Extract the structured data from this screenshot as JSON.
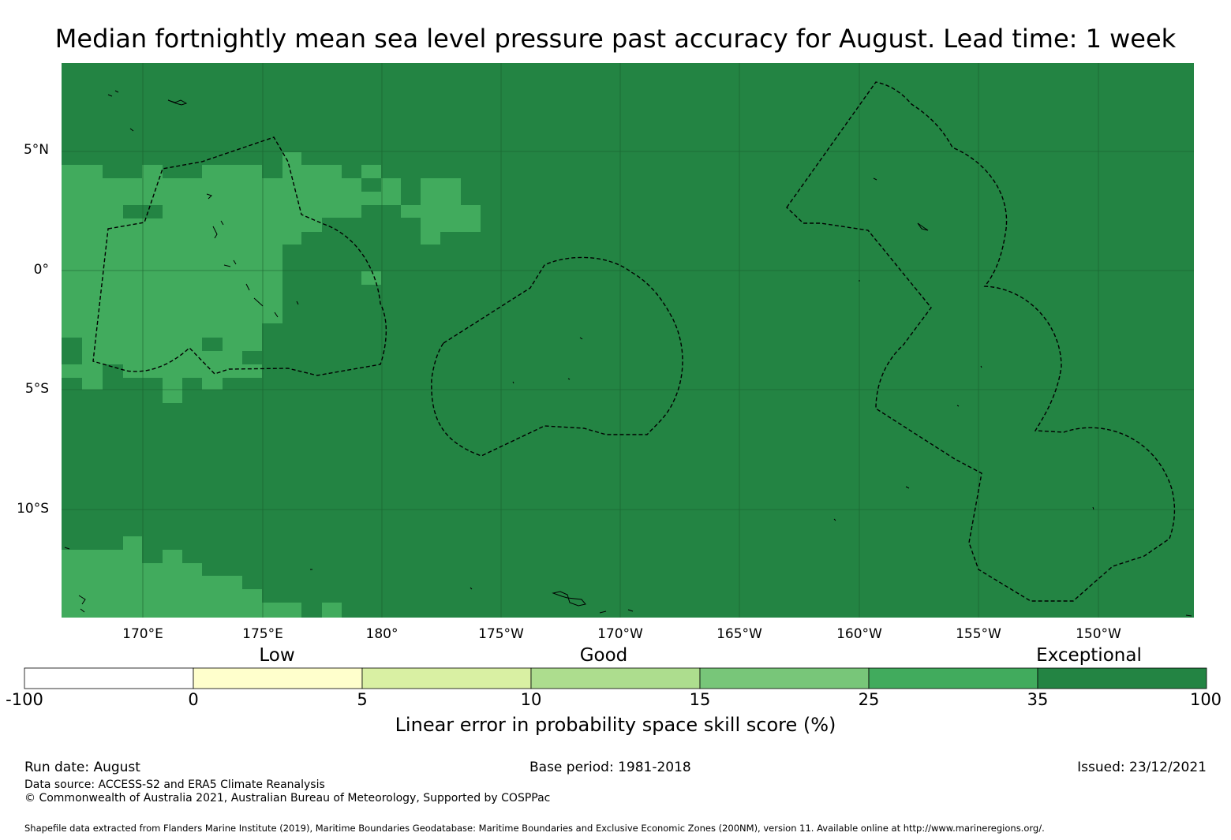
{
  "title": "Median fortnightly mean sea level pressure past accuracy for August. Lead time: 1 week",
  "map": {
    "lat_labels": [
      "5°N",
      "0°",
      "5°S",
      "10°S"
    ],
    "lon_labels": [
      "170°E",
      "175°E",
      "180°",
      "175°W",
      "170°W",
      "165°W",
      "160°W",
      "155°W",
      "150°W"
    ],
    "extent": {
      "lon_min_east": 166.6,
      "lon_max_east": 213.9,
      "lat_min": -14.6,
      "lat_max": 8.6
    },
    "background_category_color": "#238443",
    "lighter_category_color": "#41ab5d",
    "eez_boundary_style": "dashed black"
  },
  "legend": {
    "categories": [
      "Low",
      "Good",
      "Exceptional"
    ],
    "ticks": [
      "-100",
      "0",
      "5",
      "10",
      "15",
      "25",
      "35",
      "100"
    ],
    "colors": [
      "#ffffff",
      "#ffffcc",
      "#d9f0a3",
      "#addd8e",
      "#78c679",
      "#41ab5d",
      "#238443"
    ],
    "title": "Linear error in probability space skill score (%)"
  },
  "footer": {
    "run_date": "Run date: August",
    "base_period": "Base period: 1981-2018",
    "issued": "Issued: 23/12/2021",
    "data_source": "Data source: ACCESS-S2 and ERA5 Climate Reanalysis",
    "copyright": "© Commonwealth of Australia 2021, Australian Bureau of Meteorology, Supported by COSPPac",
    "shapefile": "Shapefile data extracted from Flanders Marine Institute (2019), Maritime Boundaries Geodatabase: Maritime Boundaries and Exclusive Economic Zones (200NM), version 11. Available online at http://www.marineregions.org/."
  }
}
